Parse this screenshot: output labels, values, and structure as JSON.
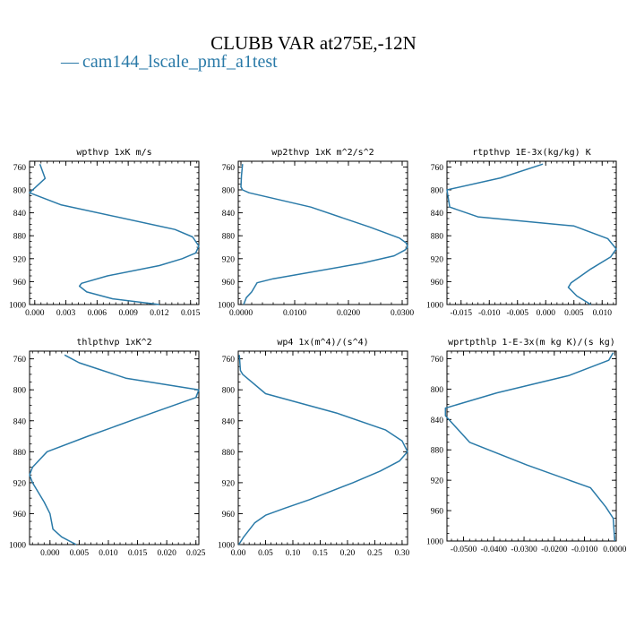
{
  "title": "CLUBB VAR at275E,-12N",
  "legend": {
    "marker": "—",
    "label": "cam144_lscale_pmf_a1test"
  },
  "colors": {
    "line": "#2a7aa8"
  },
  "chart_data": [
    {
      "type": "line",
      "title": "wpthvp  1xK m/s",
      "xlim": [
        -0.0005,
        0.0158
      ],
      "ylim": [
        1000,
        750
      ],
      "y_inverted": true,
      "xticks": [
        0.0,
        0.003,
        0.006,
        0.009,
        0.012,
        0.015
      ],
      "xtick_labels": [
        "0.000",
        "0.003",
        "0.006",
        "0.009",
        "0.012",
        "0.015"
      ],
      "yticks": [
        760,
        800,
        840,
        880,
        920,
        960,
        1000
      ],
      "series": [
        {
          "x": [
            0.0005,
            0.001,
            -0.0005,
            0.0025,
            0.0135,
            0.0152,
            0.0158,
            0.0155,
            0.0142,
            0.012,
            0.007,
            0.0045,
            0.0043,
            0.005,
            0.0075,
            0.012
          ],
          "y": [
            755,
            780,
            805,
            826,
            869,
            882,
            898,
            910,
            920,
            932,
            950,
            963,
            968,
            978,
            990,
            1000
          ]
        }
      ]
    },
    {
      "type": "line",
      "title": "wp2thvp  1xK m^2/s^2",
      "xlim": [
        -0.0005,
        0.031
      ],
      "ylim": [
        1000,
        750
      ],
      "y_inverted": true,
      "xticks": [
        0.0,
        0.01,
        0.02,
        0.03
      ],
      "xtick_labels": [
        "0.0000",
        "0.0100",
        "0.0200",
        "0.0300"
      ],
      "yticks": [
        760,
        800,
        840,
        880,
        920,
        960,
        1000
      ],
      "series": [
        {
          "x": [
            0.0003,
            0.0001,
            0.0,
            0.0003,
            0.0015,
            0.013,
            0.024,
            0.0295,
            0.0308,
            0.031,
            0.0305,
            0.0285,
            0.0225,
            0.006,
            0.003,
            0.002,
            0.001,
            0.0005
          ],
          "y": [
            755,
            775,
            795,
            800,
            805,
            830,
            865,
            884,
            893,
            900,
            905,
            915,
            928,
            955,
            962,
            978,
            988,
            1000
          ]
        }
      ]
    },
    {
      "type": "line",
      "title": "rtpthvp  1E-3x(kg/kg) K",
      "xlim": [
        -0.0175,
        0.0125
      ],
      "ylim": [
        1000,
        750
      ],
      "y_inverted": true,
      "xticks": [
        -0.015,
        -0.01,
        -0.005,
        0.0,
        0.005,
        0.01
      ],
      "xtick_labels": [
        "-0.015",
        "-0.010",
        "-0.005",
        "0.000",
        "0.005",
        "0.010"
      ],
      "yticks": [
        760,
        800,
        840,
        880,
        920,
        960,
        1000
      ],
      "series": [
        {
          "x": [
            -0.0005,
            -0.008,
            -0.0175,
            -0.017,
            -0.012,
            0.005,
            0.011,
            0.0125,
            0.0115,
            0.008,
            0.0045,
            0.004,
            0.0055,
            0.008
          ],
          "y": [
            755,
            779,
            800,
            830,
            847,
            863,
            885,
            903,
            917,
            938,
            962,
            970,
            985,
            1000
          ]
        }
      ]
    },
    {
      "type": "line",
      "title": "thlpthvp  1xK^2",
      "xlim": [
        -0.0035,
        0.0255
      ],
      "ylim": [
        1000,
        750
      ],
      "y_inverted": true,
      "xticks": [
        0.0,
        0.005,
        0.01,
        0.015,
        0.02,
        0.025
      ],
      "xtick_labels": [
        "0.000",
        "0.005",
        "0.010",
        "0.015",
        "0.020",
        "0.025"
      ],
      "yticks": [
        760,
        800,
        840,
        880,
        920,
        960,
        1000
      ],
      "series": [
        {
          "x": [
            0.0025,
            0.005,
            0.013,
            0.0255,
            0.025,
            0.0175,
            0.0065,
            -0.0005,
            -0.003,
            -0.0035,
            -0.003,
            -0.001,
            0.0,
            0.0005,
            0.002,
            0.0045
          ],
          "y": [
            755,
            765,
            785,
            800,
            810,
            830,
            860,
            880,
            900,
            910,
            920,
            945,
            960,
            980,
            990,
            1000
          ]
        }
      ]
    },
    {
      "type": "line",
      "title": "wp4  1x(m^4)/(s^4)",
      "xlim": [
        0.0,
        0.31
      ],
      "ylim": [
        1000,
        750
      ],
      "y_inverted": true,
      "xticks": [
        0.0,
        0.05,
        0.1,
        0.15,
        0.2,
        0.25,
        0.3
      ],
      "xtick_labels": [
        "0.00",
        "0.05",
        "0.10",
        "0.15",
        "0.20",
        "0.25",
        "0.30"
      ],
      "yticks": [
        760,
        800,
        840,
        880,
        920,
        960,
        1000
      ],
      "series": [
        {
          "x": [
            0.002,
            0.004,
            0.008,
            0.05,
            0.18,
            0.27,
            0.3,
            0.31,
            0.295,
            0.26,
            0.21,
            0.13,
            0.085,
            0.05,
            0.03,
            0.01,
            0.001
          ],
          "y": [
            755,
            775,
            780,
            805,
            830,
            852,
            866,
            880,
            892,
            905,
            920,
            942,
            953,
            962,
            972,
            990,
            1000
          ]
        }
      ]
    },
    {
      "type": "line",
      "title": "wprtpthlp  1-E-3x(m kg K)/(s kg)",
      "xlim": [
        -0.0555,
        0.0005
      ],
      "ylim": [
        1000,
        750
      ],
      "y_inverted": true,
      "xticks": [
        -0.05,
        -0.04,
        -0.03,
        -0.02,
        -0.01,
        0.0
      ],
      "xtick_labels": [
        "-0.0500",
        "-0.0400",
        "-0.0300",
        "-0.0200",
        "-0.0100",
        "0.0000"
      ],
      "yticks": [
        760,
        800,
        840,
        880,
        920,
        960,
        1000
      ],
      "series": [
        {
          "x": [
            -0.0005,
            -0.002,
            -0.015,
            -0.039,
            -0.056,
            -0.056,
            -0.048,
            -0.029,
            -0.008,
            -0.003,
            -0.0005,
            0.0
          ],
          "y": [
            752,
            762,
            782,
            805,
            825,
            835,
            870,
            900,
            930,
            955,
            970,
            1000
          ]
        }
      ]
    }
  ]
}
